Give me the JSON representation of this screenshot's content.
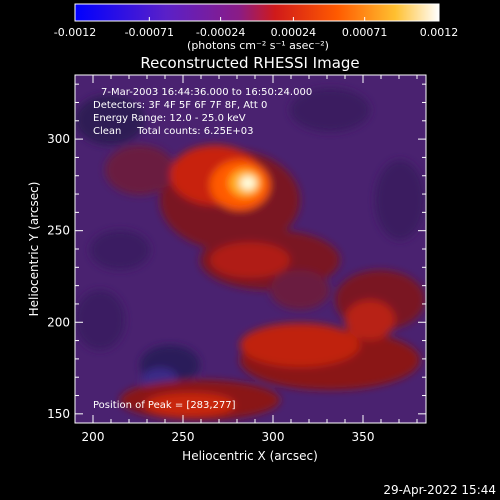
{
  "colorbar": {
    "ticks": [
      "-0.0012",
      "-0.00071",
      "-0.00024",
      "0.00024",
      "0.00071",
      "0.0012"
    ],
    "tick_values": [
      -0.0012,
      -0.00071,
      -0.00024,
      0.00024,
      0.00071,
      0.0012
    ],
    "range": [
      -0.0012,
      0.0012
    ],
    "units_label": "(photons cm⁻² s⁻¹ asec⁻²)"
  },
  "chart_data": {
    "type": "heatmap",
    "title": "Reconstructed RHESSI Image",
    "xlabel": "Heliocentric X (arcsec)",
    "ylabel": "Heliocentric Y (arcsec)",
    "xlim": [
      190,
      385
    ],
    "ylim": [
      145,
      335
    ],
    "xticks": [
      200,
      250,
      300,
      350
    ],
    "yticks": [
      150,
      200,
      250,
      300
    ],
    "xtick_labels": [
      "200",
      "250",
      "300",
      "350"
    ],
    "ytick_labels": [
      "150",
      "200",
      "250",
      "300"
    ],
    "colormap": "blue-purple-red-yellow-white",
    "grid": false,
    "peak": [
      283,
      277
    ],
    "annotations": [
      "7-Mar-2003 16:44:36.000 to 16:50:24.000",
      "Detectors: 3F 4F 5F 6F 7F 8F, Att 0",
      "Energy Range: 12.0 - 25.0 keV",
      "Clean     Total counts: 6.25E+03",
      "Position of Peak = [283,277]"
    ]
  },
  "footer": {
    "timestamp": "29-Apr-2022 15:44"
  }
}
